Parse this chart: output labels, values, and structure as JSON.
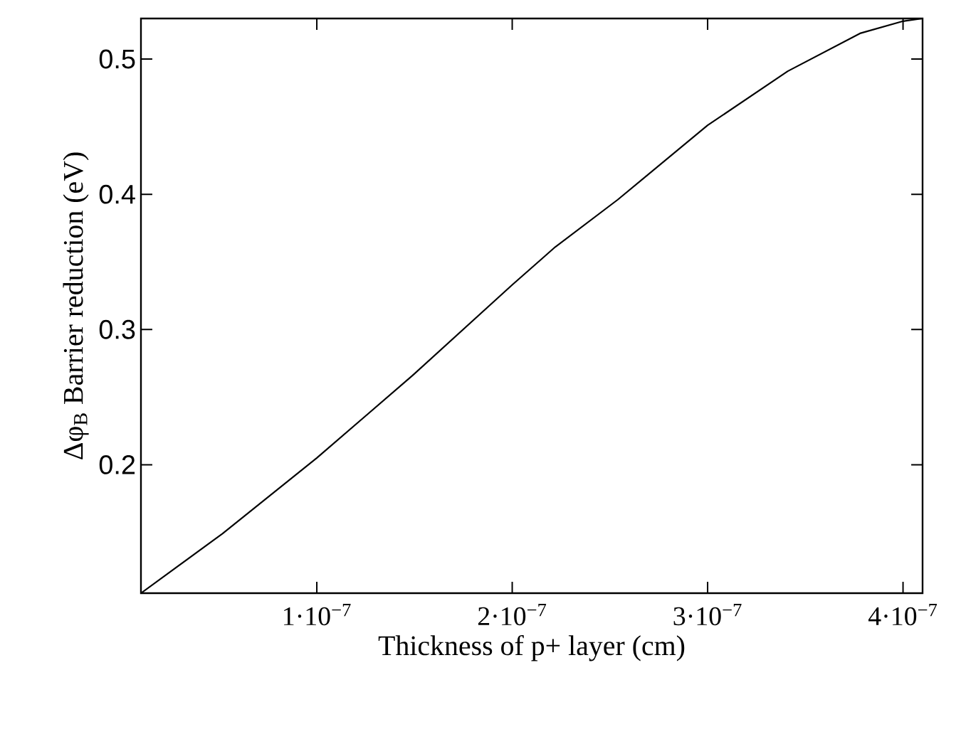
{
  "chart_data": {
    "type": "line",
    "xlabel": "Thickness of p+ layer (cm)",
    "ylabel": "Δφ$_{B}$  Barrier reduction (eV)",
    "x": [
      1e-08,
      5.17e-08,
      1e-07,
      1.49e-07,
      2e-07,
      2.22e-07,
      2.54e-07,
      3e-07,
      3.41e-07,
      3.78e-07,
      4e-07,
      4.1e-07
    ],
    "series": [
      {
        "color": "#000000",
        "values": [
          0.105,
          0.149,
          0.205,
          0.266,
          0.333,
          0.361,
          0.396,
          0.451,
          0.491,
          0.519,
          0.528,
          0.53
        ]
      }
    ],
    "xlim": [
      1e-08,
      4.1e-07
    ],
    "ylim": [
      0.105,
      0.53
    ],
    "xticks": [
      {
        "value": 1e-07,
        "label": "1·10$^{−7}$"
      },
      {
        "value": 2e-07,
        "label": "2·10$^{−7}$"
      },
      {
        "value": 3e-07,
        "label": "3·10$^{−7}$"
      },
      {
        "value": 4e-07,
        "label": "4·10$^{−7}$"
      }
    ],
    "yticks": [
      0.2,
      0.3,
      0.4,
      0.5
    ],
    "grid": false,
    "marker": "none",
    "line_style": "solid"
  }
}
